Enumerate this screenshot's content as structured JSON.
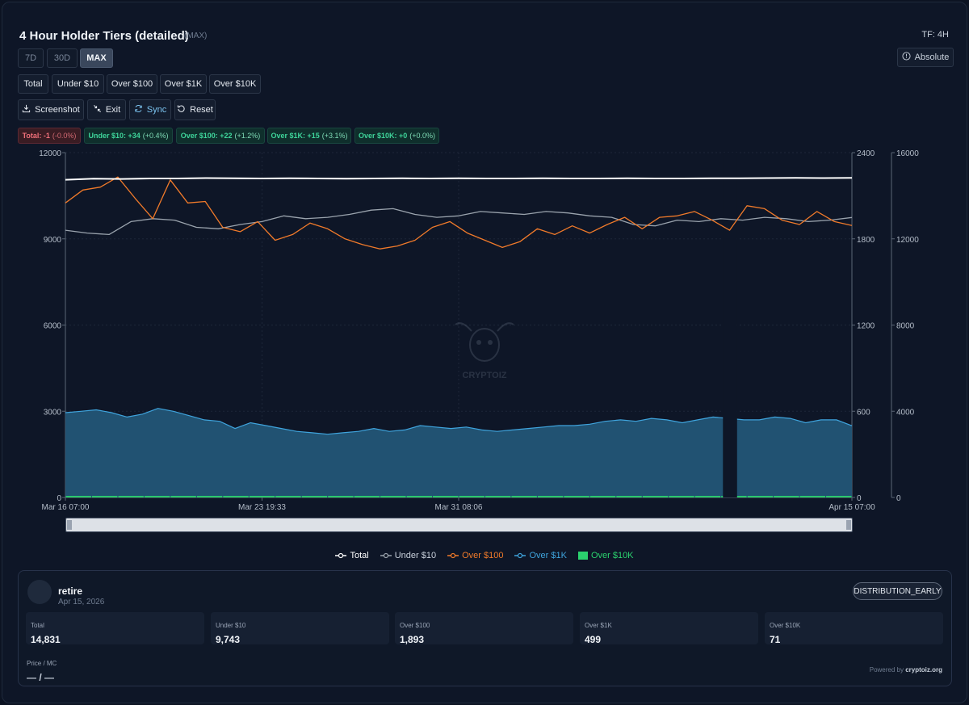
{
  "header": {
    "title": "4 Hour Holder Tiers (detailed)",
    "title_sub": "(MAX)",
    "timeframe": "TF: 4H"
  },
  "range_buttons": [
    {
      "label": "7D"
    },
    {
      "label": "30D"
    },
    {
      "label": "MAX"
    }
  ],
  "absolute_button": {
    "label": "Absolute"
  },
  "tier_buttons": [
    {
      "label": "Total"
    },
    {
      "label": "Under $10"
    },
    {
      "label": "Over $100"
    },
    {
      "label": "Over $1K"
    },
    {
      "label": "Over $10K"
    }
  ],
  "tools": {
    "screenshot": "Screenshot",
    "exit": "Exit",
    "sync": "Sync",
    "reset": "Reset"
  },
  "change_badges": [
    {
      "name": "Total:",
      "delta": "-1",
      "pct": "(-0.0%)"
    },
    {
      "name": "Under $10:",
      "delta": "+34",
      "pct": "(+0.4%)"
    },
    {
      "name": "Over $100:",
      "delta": "+22",
      "pct": "(+1.2%)"
    },
    {
      "name": "Over $1K:",
      "delta": "+15",
      "pct": "(+3.1%)"
    },
    {
      "name": "Over $10K:",
      "delta": "+0",
      "pct": "(+0.0%)"
    }
  ],
  "chart_data": {
    "type": "line",
    "watermark": "CRYPTOIZ",
    "x_tick_labels": [
      "Mar 16 07:00",
      "Mar 23 19:33",
      "Mar 31 08:06",
      "Apr 15 07:00"
    ],
    "x_tick_fractions": [
      0.0,
      0.25,
      0.5,
      1.0
    ],
    "axes": {
      "left": {
        "min": 0,
        "max": 12000,
        "ticks": [
          0,
          3000,
          6000,
          9000,
          12000
        ]
      },
      "right1": {
        "min": 0,
        "max": 2400,
        "ticks": [
          0,
          600,
          1200,
          1800,
          2400
        ]
      },
      "right2": {
        "min": 0,
        "max": 16000,
        "ticks": [
          0,
          4000,
          8000,
          12000,
          16000
        ]
      }
    },
    "gap_range": [
      0.836,
      0.854
    ],
    "series": [
      {
        "name": "Total",
        "type": "line",
        "axis": "right2",
        "color": "#ffffff",
        "values": [
          14740,
          14790,
          14780,
          14800,
          14800,
          14820,
          14810,
          14800,
          14810,
          14800,
          14790,
          14800,
          14810,
          14800,
          14810,
          14800,
          14800,
          14810,
          14800,
          14800,
          14810,
          14800,
          14800,
          14810,
          14810,
          14820,
          14830,
          14820,
          14831
        ]
      },
      {
        "name": "Under $10",
        "type": "line",
        "axis": "left",
        "color": "#9aa3ad",
        "values": [
          9300,
          9200,
          9150,
          9600,
          9700,
          9650,
          9400,
          9350,
          9500,
          9600,
          9800,
          9700,
          9750,
          9850,
          10000,
          10050,
          9850,
          9750,
          9800,
          9950,
          9900,
          9850,
          9950,
          9900,
          9800,
          9750,
          9500,
          9450,
          9650,
          9600,
          9700,
          9650,
          9750,
          9700,
          9600,
          9650,
          9743
        ]
      },
      {
        "name": "Over $100",
        "type": "line",
        "axis": "right1",
        "color": "#f07a2a",
        "values": [
          2050,
          2140,
          2160,
          2230,
          2080,
          1940,
          2210,
          2050,
          2060,
          1880,
          1850,
          1920,
          1790,
          1830,
          1910,
          1870,
          1800,
          1760,
          1730,
          1750,
          1790,
          1880,
          1920,
          1840,
          1790,
          1740,
          1780,
          1870,
          1830,
          1890,
          1840,
          1900,
          1950,
          1870,
          1950,
          1960,
          1990,
          1930,
          1860,
          2030,
          2010,
          1930,
          1900,
          1990,
          1920,
          1893
        ]
      },
      {
        "name": "Over $1K",
        "type": "area",
        "axis": "right1",
        "color": "#3fa4dd",
        "values": [
          590,
          600,
          610,
          590,
          560,
          580,
          620,
          600,
          570,
          540,
          530,
          480,
          520,
          500,
          480,
          460,
          450,
          440,
          450,
          460,
          480,
          460,
          470,
          500,
          490,
          480,
          490,
          470,
          460,
          470,
          480,
          490,
          500,
          500,
          510,
          530,
          540,
          530,
          550,
          540,
          520,
          540,
          560,
          550,
          540,
          540,
          560,
          550,
          520,
          540,
          540,
          499
        ]
      },
      {
        "name": "Over $10K",
        "type": "bar",
        "axis": "right2",
        "color": "#2bd16e",
        "values": [
          71,
          71,
          71,
          71,
          71,
          71,
          71,
          71,
          71,
          71,
          71,
          71,
          71,
          71,
          71,
          71,
          71,
          71,
          71,
          71,
          71,
          71,
          71,
          71,
          71,
          71,
          71,
          71,
          71,
          71
        ]
      }
    ]
  },
  "scrollbar": {},
  "snapshot": {
    "name": "retire",
    "date": "Apr 15, 2026",
    "status": "DISTRIBUTION_EARLY",
    "stats": [
      {
        "label": "Total",
        "value": "14,831"
      },
      {
        "label": "Under $10",
        "value": "9,743"
      },
      {
        "label": "Over $100",
        "value": "1,893"
      },
      {
        "label": "Over $1K",
        "value": "499"
      },
      {
        "label": "Over $10K",
        "value": "71"
      }
    ],
    "price_label": "Price / MC",
    "price_value": "— / —",
    "powered_by": "Powered by",
    "powered_brand": "cryptoiz.org"
  }
}
